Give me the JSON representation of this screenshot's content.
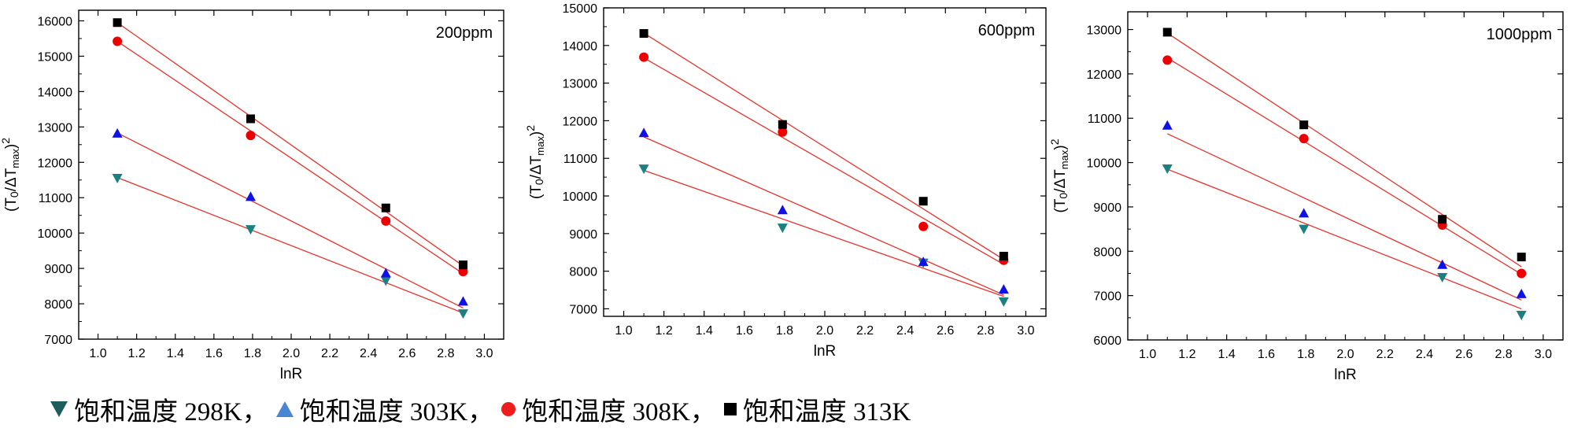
{
  "chart_data": [
    {
      "type": "scatter",
      "title": "200ppm",
      "xlabel": "lnR",
      "ylabel": "(T0/ΔTmax)2",
      "xlim": [
        0.9,
        3.1
      ],
      "ylim": [
        7000,
        16300
      ],
      "xticks": [
        1.0,
        1.2,
        1.4,
        1.6,
        1.8,
        2.0,
        2.2,
        2.4,
        2.6,
        2.8,
        3.0
      ],
      "yticks": [
        7000,
        8000,
        9000,
        10000,
        11000,
        12000,
        13000,
        14000,
        15000,
        16000
      ],
      "x": [
        1.1,
        1.79,
        2.49,
        2.89
      ],
      "series": [
        {
          "values": [
            11550,
            10100,
            8650,
            7720
          ],
          "fit": [
            11570,
            7740
          ]
        },
        {
          "values": [
            12820,
            11030,
            8870,
            8070
          ],
          "fit": [
            12830,
            7880
          ]
        },
        {
          "values": [
            15420,
            12760,
            10340,
            8910
          ],
          "fit": [
            15420,
            8850
          ]
        },
        {
          "values": [
            15950,
            13230,
            10710,
            9100
          ],
          "fit": [
            15950,
            9070
          ]
        }
      ]
    },
    {
      "type": "scatter",
      "title": "600ppm",
      "xlabel": "lnR",
      "ylabel": "(T0/ΔTmax)2",
      "xlim": [
        0.9,
        3.1
      ],
      "ylim": [
        6800,
        15000
      ],
      "xticks": [
        1.0,
        1.2,
        1.4,
        1.6,
        1.8,
        2.0,
        2.2,
        2.4,
        2.6,
        2.8,
        3.0
      ],
      "yticks": [
        7000,
        8000,
        9000,
        10000,
        11000,
        12000,
        13000,
        14000,
        15000
      ],
      "x": [
        1.1,
        1.79,
        2.49,
        2.89
      ],
      "series": [
        {
          "values": [
            10720,
            9150,
            8220,
            7190
          ],
          "fit": [
            10680,
            7330
          ]
        },
        {
          "values": [
            11680,
            9630,
            8250,
            7520
          ],
          "fit": [
            11570,
            7370
          ]
        },
        {
          "values": [
            13690,
            11700,
            9190,
            8290
          ],
          "fit": [
            13670,
            8180
          ]
        },
        {
          "values": [
            14320,
            11900,
            9860,
            8400
          ],
          "fit": [
            14330,
            8310
          ]
        }
      ]
    },
    {
      "type": "scatter",
      "title": "1000ppm",
      "xlabel": "lnR",
      "ylabel": "(T0/ΔTmax)2",
      "xlim": [
        0.9,
        3.1
      ],
      "ylim": [
        6000,
        13400
      ],
      "xticks": [
        1.0,
        1.2,
        1.4,
        1.6,
        1.8,
        2.0,
        2.2,
        2.4,
        2.6,
        2.8,
        3.0
      ],
      "yticks": [
        6000,
        7000,
        8000,
        9000,
        10000,
        11000,
        12000,
        13000
      ],
      "x": [
        1.1,
        1.79,
        2.49,
        2.89
      ],
      "series": [
        {
          "values": [
            9860,
            8500,
            7410,
            6560
          ],
          "fit": [
            9850,
            6700
          ]
        },
        {
          "values": [
            10840,
            8860,
            7700,
            7040
          ],
          "fit": [
            10650,
            6900
          ]
        },
        {
          "values": [
            12310,
            10540,
            8590,
            7500
          ],
          "fit": [
            12360,
            7480
          ]
        },
        {
          "values": [
            12940,
            10850,
            8720,
            7870
          ],
          "fit": [
            12920,
            7650
          ]
        }
      ]
    }
  ],
  "legend": {
    "items": [
      {
        "label": "饱和温度 298K",
        "sep": "，",
        "marker": "triangle-down",
        "color": "#1b5e5c"
      },
      {
        "label": "饱和温度 303K",
        "sep": "，",
        "marker": "triangle-up",
        "color": "#4a86d4"
      },
      {
        "label": "饱和温度 308K",
        "sep": "，",
        "marker": "circle",
        "color": "#ee1c1c"
      },
      {
        "label": "饱和温度 313K",
        "sep": "",
        "marker": "square",
        "color": "#000000"
      }
    ]
  },
  "style": {
    "fit_color": "#e8332a",
    "marker_colors": [
      "#1a8080",
      "#1010e8",
      "#ee0000",
      "#000000"
    ],
    "marker_shapes": [
      "triangle-down",
      "triangle-up",
      "circle",
      "square"
    ]
  }
}
